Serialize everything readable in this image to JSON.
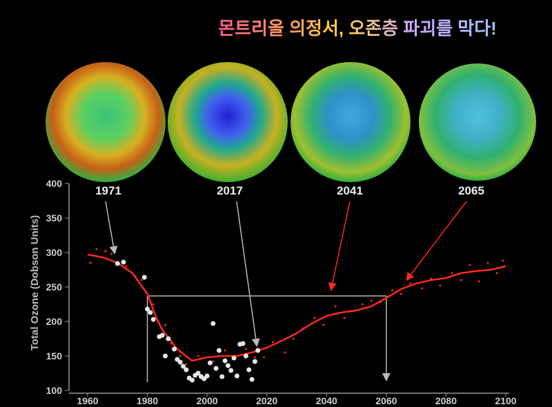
{
  "chart_data": {
    "type": "line-scatter",
    "title": "몬트리올 의정서, 오존층 파괴를 막다!",
    "y_label": "Total Ozone (Dobson Units)",
    "globe_labels": [
      "1971",
      "2017",
      "2041",
      "2065"
    ],
    "xlim": [
      1960,
      2100
    ],
    "xticks": [
      1960,
      1980,
      2000,
      2020,
      2040,
      2060,
      2080,
      2100
    ],
    "ylim": [
      100,
      400
    ],
    "yticks": [
      100,
      150,
      200,
      250,
      300,
      350,
      400
    ],
    "reference_line": {
      "y": 237,
      "x_start": 1980,
      "x_end": 2060
    },
    "series": [
      {
        "kind": "line",
        "color": "#ff2a1a",
        "x": [
          1960,
          1965,
          1970,
          1975,
          1980,
          1983,
          1985,
          1990,
          1995,
          2000,
          2005,
          2010,
          2015,
          2020,
          2025,
          2030,
          2035,
          2040,
          2045,
          2050,
          2055,
          2060,
          2065,
          2070,
          2075,
          2080,
          2085,
          2090,
          2095,
          2100
        ],
        "values": [
          297,
          293,
          285,
          270,
          240,
          205,
          188,
          160,
          143,
          148,
          150,
          150,
          155,
          162,
          172,
          183,
          197,
          208,
          213,
          216,
          222,
          234,
          247,
          255,
          260,
          263,
          270,
          273,
          275,
          280
        ]
      },
      {
        "kind": "scatter",
        "color": "#ff2a1a",
        "x": [
          1961,
          1963,
          1966,
          1968,
          1973,
          1976,
          1978,
          1982,
          1986,
          1988,
          1991,
          1993,
          1997,
          2002,
          2006,
          2009,
          2013,
          2016,
          2019,
          2022,
          2026,
          2029,
          2032,
          2036,
          2039,
          2043,
          2046,
          2049,
          2052,
          2055,
          2058,
          2062,
          2065,
          2068,
          2072,
          2075,
          2078,
          2082,
          2085,
          2088,
          2091,
          2094,
          2097,
          2099
        ],
        "values": [
          285,
          305,
          302,
          298,
          280,
          265,
          260,
          225,
          195,
          168,
          150,
          138,
          150,
          142,
          158,
          150,
          160,
          148,
          148,
          170,
          155,
          175,
          190,
          205,
          195,
          222,
          205,
          215,
          225,
          230,
          228,
          245,
          240,
          255,
          248,
          262,
          252,
          270,
          260,
          282,
          258,
          285,
          270,
          288
        ]
      },
      {
        "kind": "scatter",
        "color": "#e6e6e6",
        "x": [
          1970,
          1972,
          1979,
          1980,
          1981,
          1982,
          1984,
          1985,
          1986,
          1987,
          1989,
          1990,
          1991,
          1992,
          1993,
          1994,
          1995,
          1996,
          1997,
          1998,
          1999,
          2000,
          2001,
          2002,
          2003,
          2004,
          2005,
          2006,
          2007,
          2008,
          2009,
          2010,
          2011,
          2012,
          2013,
          2014,
          2015,
          2016,
          2017
        ],
        "values": [
          284,
          286,
          264,
          218,
          213,
          203,
          178,
          180,
          150,
          175,
          160,
          145,
          141,
          135,
          130,
          118,
          115,
          122,
          125,
          120,
          117,
          121,
          140,
          197,
          132,
          158,
          120,
          143,
          136,
          129,
          147,
          121,
          167,
          168,
          150,
          130,
          116,
          142,
          158
        ]
      }
    ]
  }
}
